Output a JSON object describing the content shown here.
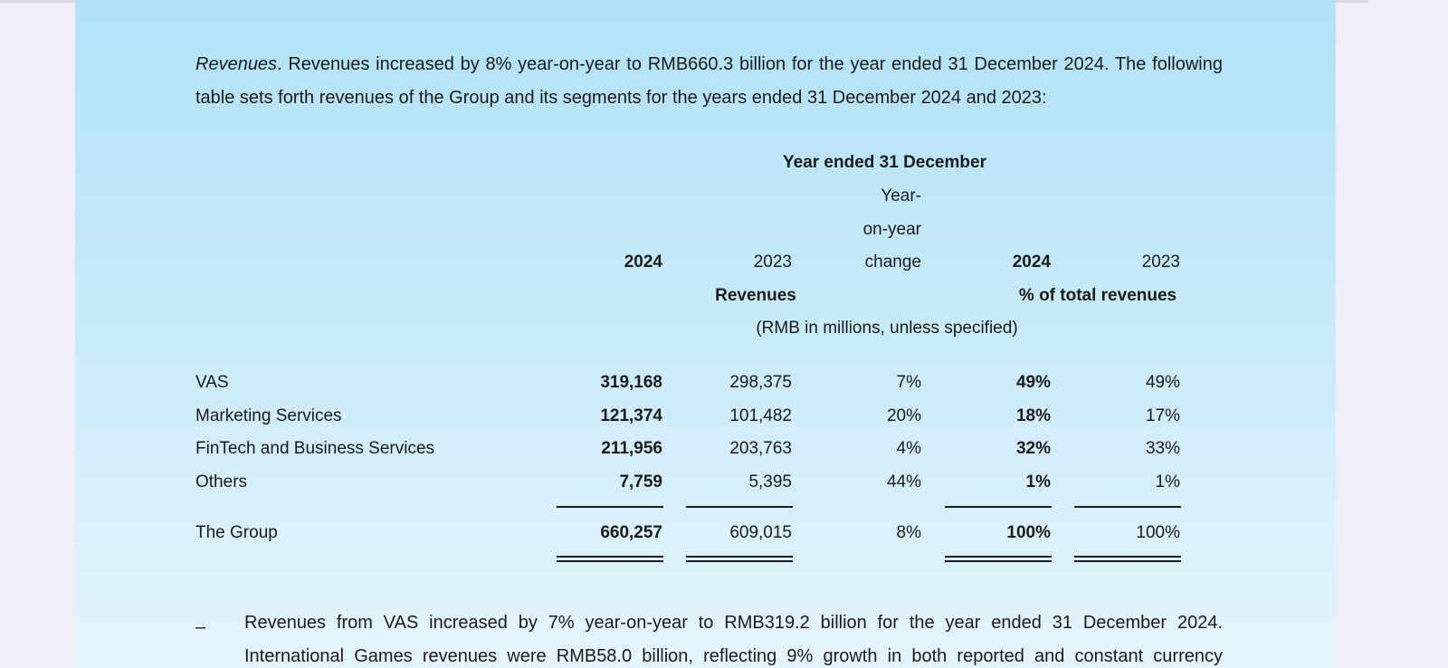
{
  "intro": {
    "italic_lead": "Revenues",
    "text": ". Revenues increased by 8% year-on-year to RMB660.3 billion for the year ended 31 December 2024. The following table sets forth revenues of the Group and its segments for the years ended 31 December 2024 and 2023:"
  },
  "table": {
    "header_group": "Year ended 31 December",
    "yoy_line1": "Year-",
    "yoy_line2": "on-year",
    "yoy_line3": "change",
    "col_2024": "2024",
    "col_2023": "2023",
    "pct_col_2024": "2024",
    "pct_col_2023": "2023",
    "revenues_label": "Revenues",
    "pct_label": "% of total revenues",
    "units_note": "(RMB in millions, unless specified)",
    "rows": [
      {
        "label": "VAS",
        "rev_2024": "319,168",
        "rev_2023": "298,375",
        "yoy": "7%",
        "pct_2024": "49%",
        "pct_2023": "49%"
      },
      {
        "label": "Marketing Services",
        "rev_2024": "121,374",
        "rev_2023": "101,482",
        "yoy": "20%",
        "pct_2024": "18%",
        "pct_2023": "17%"
      },
      {
        "label": "FinTech and Business Services",
        "rev_2024": "211,956",
        "rev_2023": "203,763",
        "yoy": "4%",
        "pct_2024": "32%",
        "pct_2023": "33%"
      },
      {
        "label": "Others",
        "rev_2024": "7,759",
        "rev_2023": "5,395",
        "yoy": "44%",
        "pct_2024": "1%",
        "pct_2023": "1%"
      }
    ],
    "total": {
      "label": "The Group",
      "rev_2024": "660,257",
      "rev_2023": "609,015",
      "yoy": "8%",
      "pct_2024": "100%",
      "pct_2023": "100%"
    }
  },
  "bullet": {
    "dash": "–",
    "text": "Revenues from VAS increased by 7% year-on-year to RMB319.2 billion for the year ended 31 December 2024. International Games revenues were RMB58.0 billion, reflecting 9% growth in both reported and constant currency"
  }
}
